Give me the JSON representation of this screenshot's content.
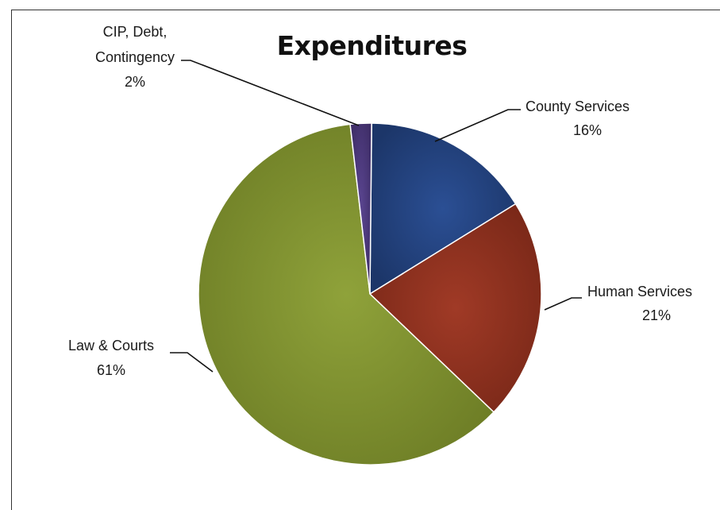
{
  "chart_data": {
    "type": "pie",
    "title": "Expenditures",
    "slices": [
      {
        "label": "County Services",
        "value": 16,
        "value_label": "16%",
        "color": "#1f3d7a"
      },
      {
        "label": "Human Services",
        "value": 21,
        "value_label": "21%",
        "color": "#8b2e1e"
      },
      {
        "label": "Law & Courts",
        "value": 61,
        "value_label": "61%",
        "color": "#7d8f2e"
      },
      {
        "label": "CIP, Debt, Contingency",
        "value": 2,
        "value_label": "2%",
        "color": "#4b3779"
      }
    ],
    "legend": "none"
  }
}
